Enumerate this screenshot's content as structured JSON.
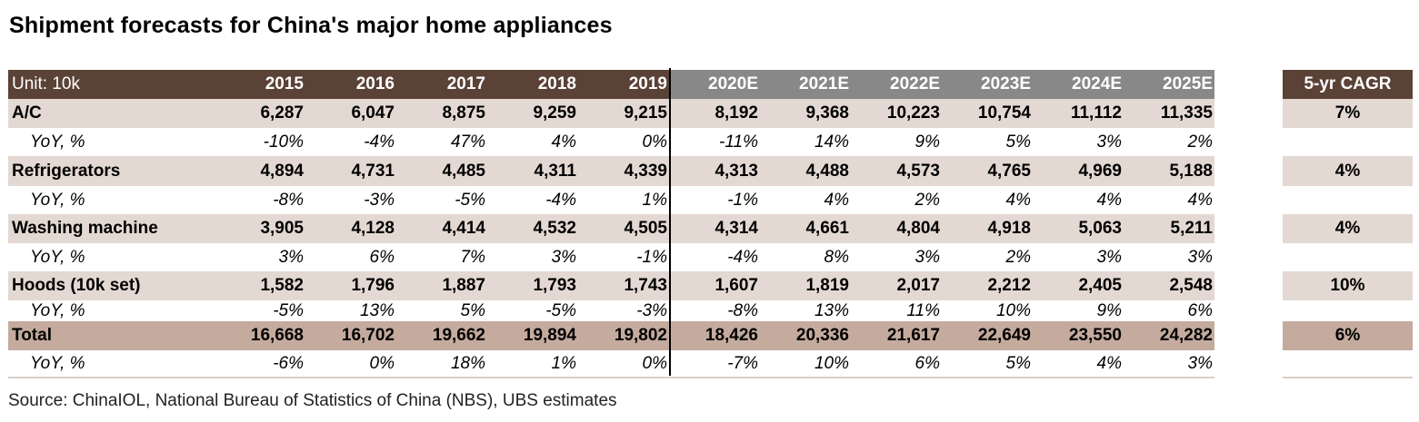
{
  "title": "Shipment forecasts for China's major home appliances",
  "source": "Source: ChinaIOL, National Bureau of Statistics of China (NBS), UBS estimates",
  "table": {
    "unit_label": "Unit: 10k",
    "years": [
      "2015",
      "2016",
      "2017",
      "2018",
      "2019",
      "2020E",
      "2021E",
      "2022E",
      "2023E",
      "2024E",
      "2025E"
    ],
    "cagr_header": "5-yr CAGR",
    "rows": [
      {
        "label": "A/C",
        "values": [
          "6,287",
          "6,047",
          "8,875",
          "9,259",
          "9,215",
          "8,192",
          "9,368",
          "10,223",
          "10,754",
          "11,112",
          "11,335"
        ],
        "cagr": "7%"
      },
      {
        "label": "YoY, %",
        "values": [
          "-10%",
          "-4%",
          "47%",
          "4%",
          "0%",
          "-11%",
          "14%",
          "9%",
          "5%",
          "3%",
          "2%"
        ],
        "cagr": ""
      },
      {
        "label": "Refrigerators",
        "values": [
          "4,894",
          "4,731",
          "4,485",
          "4,311",
          "4,339",
          "4,313",
          "4,488",
          "4,573",
          "4,765",
          "4,969",
          "5,188"
        ],
        "cagr": "4%"
      },
      {
        "label": "YoY, %",
        "values": [
          "-8%",
          "-3%",
          "-5%",
          "-4%",
          "1%",
          "-1%",
          "4%",
          "2%",
          "4%",
          "4%",
          "4%"
        ],
        "cagr": ""
      },
      {
        "label": "Washing machine",
        "values": [
          "3,905",
          "4,128",
          "4,414",
          "4,532",
          "4,505",
          "4,314",
          "4,661",
          "4,804",
          "4,918",
          "5,063",
          "5,211"
        ],
        "cagr": "4%"
      },
      {
        "label": "YoY, %",
        "values": [
          "3%",
          "6%",
          "7%",
          "3%",
          "-1%",
          "-4%",
          "8%",
          "3%",
          "2%",
          "3%",
          "3%"
        ],
        "cagr": ""
      },
      {
        "label": "Hoods (10k set)",
        "values": [
          "1,582",
          "1,796",
          "1,887",
          "1,793",
          "1,743",
          "1,607",
          "1,819",
          "2,017",
          "2,212",
          "2,405",
          "2,548"
        ],
        "cagr": "10%"
      },
      {
        "label": "YoY, %",
        "values": [
          "-5%",
          "13%",
          "5%",
          "-5%",
          "-3%",
          "-8%",
          "13%",
          "11%",
          "10%",
          "9%",
          "6%"
        ],
        "cagr": ""
      },
      {
        "label": "Total",
        "values": [
          "16,668",
          "16,702",
          "19,662",
          "19,894",
          "19,802",
          "18,426",
          "20,336",
          "21,617",
          "22,649",
          "23,550",
          "24,282"
        ],
        "cagr": "6%"
      },
      {
        "label": "YoY, %",
        "values": [
          "-6%",
          "0%",
          "18%",
          "1%",
          "0%",
          "-7%",
          "10%",
          "6%",
          "5%",
          "4%",
          "3%"
        ],
        "cagr": ""
      }
    ]
  },
  "colors": {
    "header_actual": "#5b4237",
    "header_forecast": "#888888",
    "main_row": "#e3d9d2",
    "total_row": "#c4ab9e"
  }
}
